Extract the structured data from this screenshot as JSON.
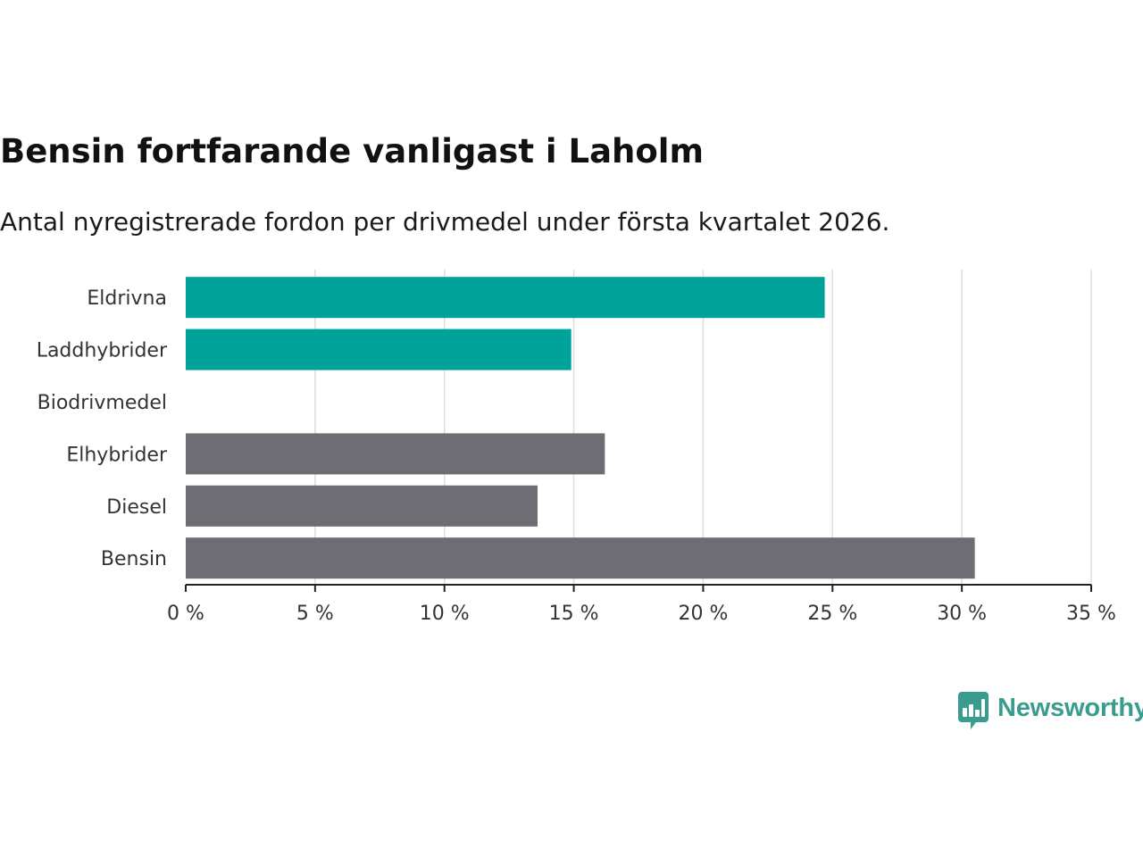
{
  "title": "Bensin fortfarande vanligast i Laholm",
  "subtitle": "Antal nyregistrerade fordon per drivmedel under första kvartalet 2026.",
  "brand": {
    "name": "Newsworthy",
    "color": "#3a9b8f",
    "icon": "newsworthy-logo-icon"
  },
  "colors": {
    "highlight": "#00a39a",
    "default": "#6e6d73",
    "grid": "#dddddd",
    "axis": "#222222"
  },
  "chart_data": {
    "type": "bar",
    "orientation": "horizontal",
    "title": "Bensin fortfarande vanligast i Laholm",
    "subtitle": "Antal nyregistrerade fordon per drivmedel under första kvartalet 2026.",
    "xlabel": "",
    "ylabel": "",
    "xlim": [
      0,
      35
    ],
    "ticks": [
      0,
      5,
      10,
      15,
      20,
      25,
      30,
      35
    ],
    "tick_labels": [
      "0 %",
      "5 %",
      "10 %",
      "15 %",
      "20 %",
      "25 %",
      "30 %",
      "35 %"
    ],
    "grid": true,
    "legend": "none",
    "categories": [
      "Eldrivna",
      "Laddhybrider",
      "Biodrivmedel",
      "Elhybrider",
      "Diesel",
      "Bensin"
    ],
    "values": [
      24.7,
      14.9,
      0,
      16.2,
      13.6,
      30.5
    ],
    "bar_colors": [
      "#00a39a",
      "#00a39a",
      "#00a39a",
      "#6e6d73",
      "#6e6d73",
      "#6e6d73"
    ],
    "unit": "%"
  }
}
